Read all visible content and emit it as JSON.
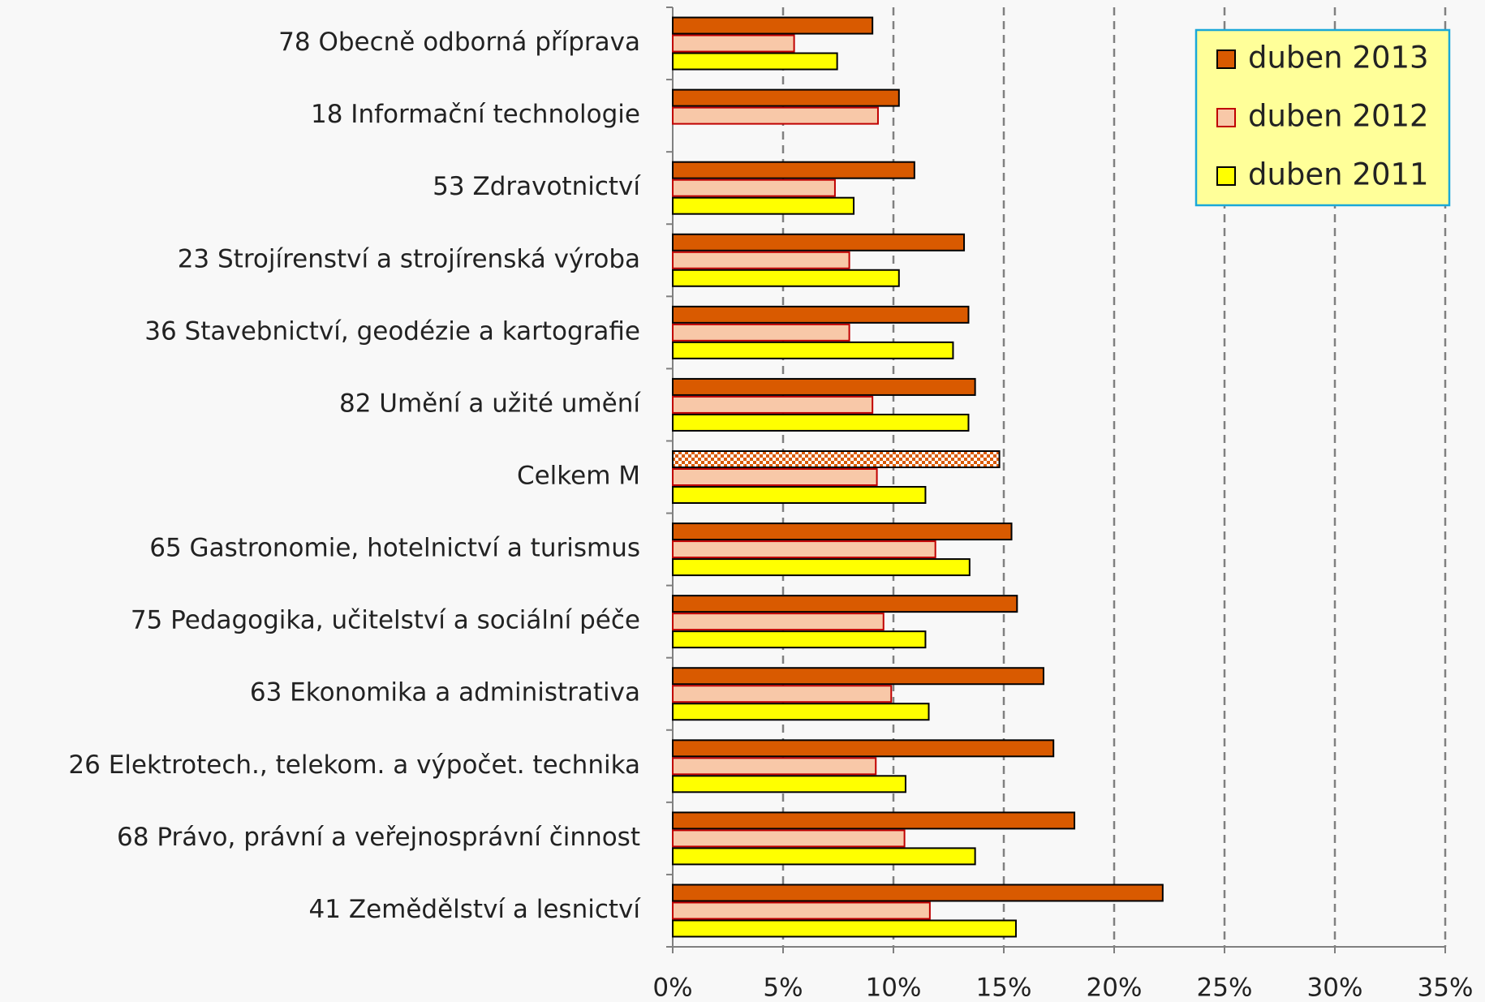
{
  "chart_data": {
    "type": "barh",
    "categories": [
      "78 Obecně odborná příprava",
      "18 Informační technologie",
      "53 Zdravotnictví",
      "23 Strojírenství a strojírenská výroba",
      "36 Stavebnictví, geodézie a kartografie",
      "82 Umění a užité umění",
      "Celkem M",
      "65 Gastronomie, hotelnictví a turismus",
      "75 Pedagogika, učitelství a sociální péče",
      "63 Ekonomika a administrativa",
      "26 Elektrotech., telekom. a výpočet. technika",
      "68 Právo, právní a veřejnosprávní činnost",
      "41 Zemědělství a lesnictví"
    ],
    "series": [
      {
        "name": "duben 2013",
        "color": "#d95a00",
        "border": "#000000",
        "values": [
          9.05,
          10.25,
          10.95,
          13.2,
          13.4,
          13.7,
          14.8,
          15.35,
          15.6,
          16.8,
          17.25,
          18.2,
          22.2
        ]
      },
      {
        "name": "duben 2012",
        "color": "#f8c8a8",
        "border": "#c00000",
        "values": [
          5.5,
          9.3,
          7.35,
          8.0,
          8.0,
          9.05,
          9.25,
          11.9,
          9.55,
          9.9,
          9.2,
          10.5,
          11.65
        ]
      },
      {
        "name": "duben 2011",
        "color": "#ffff00",
        "border": "#000000",
        "values": [
          7.45,
          null,
          8.2,
          10.25,
          12.7,
          13.4,
          11.45,
          13.45,
          11.45,
          11.6,
          10.55,
          13.7,
          15.55
        ]
      }
    ],
    "highlighted_category": 6,
    "xlim": [
      0,
      35
    ],
    "xticks": [
      {
        "value": 0,
        "label": "0%"
      },
      {
        "value": 5,
        "label": "5%"
      },
      {
        "value": 10,
        "label": "10%"
      },
      {
        "value": 15,
        "label": "15%"
      },
      {
        "value": 20,
        "label": "20%"
      },
      {
        "value": 25,
        "label": "25%"
      },
      {
        "value": 30,
        "label": "30%"
      },
      {
        "value": 35,
        "label": "35%"
      }
    ],
    "grid": true,
    "legend": "top-right"
  }
}
